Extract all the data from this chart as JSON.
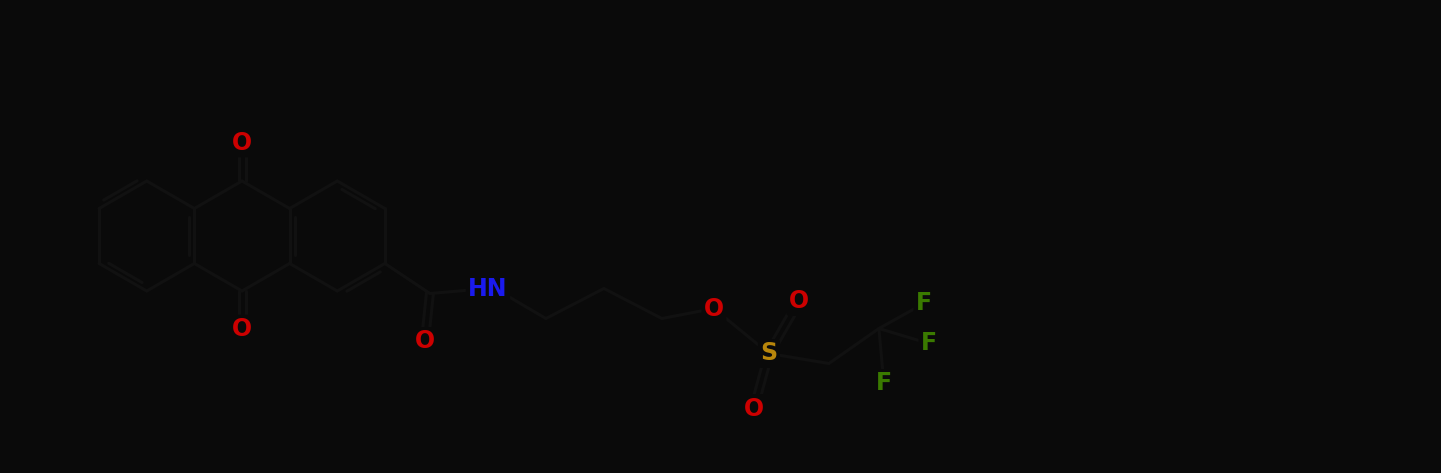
{
  "bg_color": "#0a0a0a",
  "bond_color": "#000000",
  "line_color": "#111111",
  "atom_colors": {
    "O": "#cc0000",
    "N": "#1a1aee",
    "S": "#b8860b",
    "F": "#3a7a00",
    "C": "#000000"
  },
  "fig_width": 14.41,
  "fig_height": 4.73,
  "dpi": 100
}
